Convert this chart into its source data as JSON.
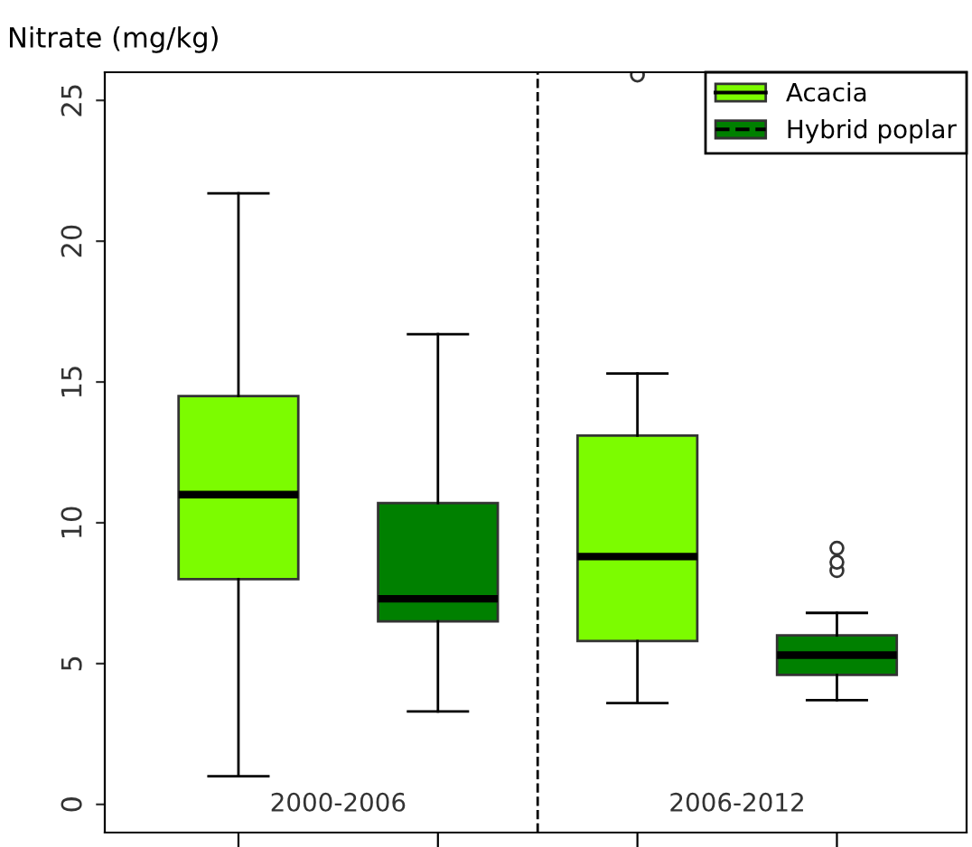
{
  "chart_data": {
    "type": "box",
    "ylabel": "Nitrate (mg/kg)",
    "categories": [
      "2000-2006",
      "2006-2012"
    ],
    "series": [
      {
        "name": "Acacia",
        "color": "#7cfc00",
        "line_style": "solid",
        "boxes": [
          {
            "low": 1.0,
            "q1": 8.0,
            "median": 11.0,
            "q3": 14.5,
            "high": 21.7
          },
          {
            "low": 3.6,
            "q1": 5.8,
            "median": 8.8,
            "q3": 13.1,
            "high": 15.3,
            "outliers": [
              25.9
            ]
          }
        ]
      },
      {
        "name": "Hybrid poplar",
        "color": "#008000",
        "line_style": "dashed",
        "boxes": [
          {
            "low": 3.3,
            "q1": 6.5,
            "median": 7.3,
            "q3": 10.7,
            "high": 16.7
          },
          {
            "low": 3.7,
            "q1": 4.6,
            "median": 5.3,
            "q3": 6.0,
            "high": 6.8,
            "outliers": [
              8.3,
              8.6,
              9.1
            ]
          }
        ]
      }
    ],
    "ylim": [
      -1,
      26
    ],
    "yticks": [
      0,
      5,
      10,
      15,
      20,
      25
    ],
    "grid": false,
    "legend": "top right"
  }
}
